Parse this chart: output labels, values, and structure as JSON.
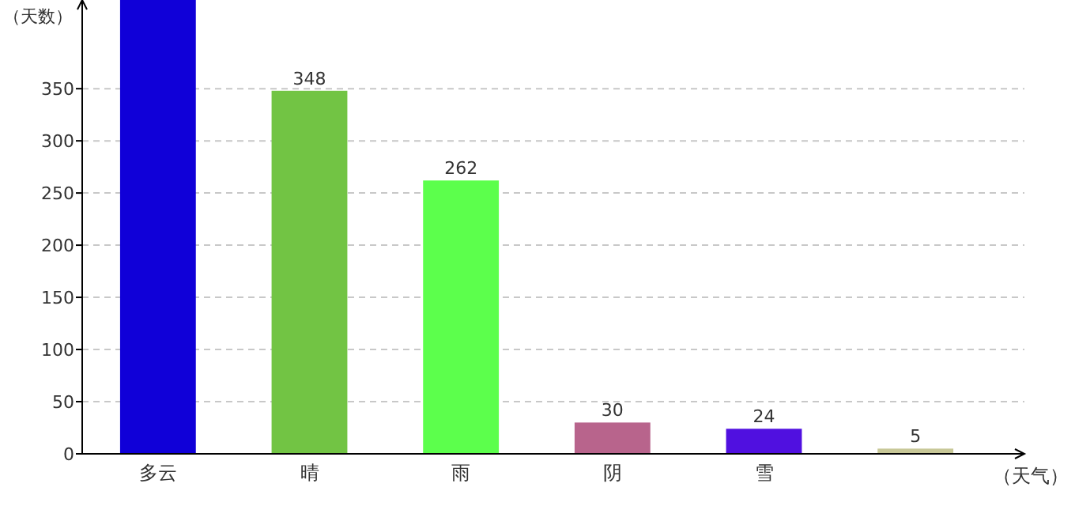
{
  "chart_data": {
    "type": "bar",
    "ylabel": "（天数）",
    "xlabel": "（天气）",
    "categories": [
      "多云",
      "晴",
      "雨",
      "阴",
      "雪",
      null
    ],
    "values": [
      435,
      348,
      262,
      30,
      24,
      5
    ],
    "colors": [
      "#1000d8",
      "#72c444",
      "#5cff4c",
      "#b8648c",
      "#5010e0",
      "#c8c898"
    ],
    "value_labels": [
      null,
      "348",
      "262",
      "30",
      "24",
      "5"
    ],
    "ylim": [
      0,
      435
    ],
    "yticks": [
      0,
      50,
      100,
      150,
      200,
      250,
      300,
      350
    ],
    "grid": "y"
  }
}
